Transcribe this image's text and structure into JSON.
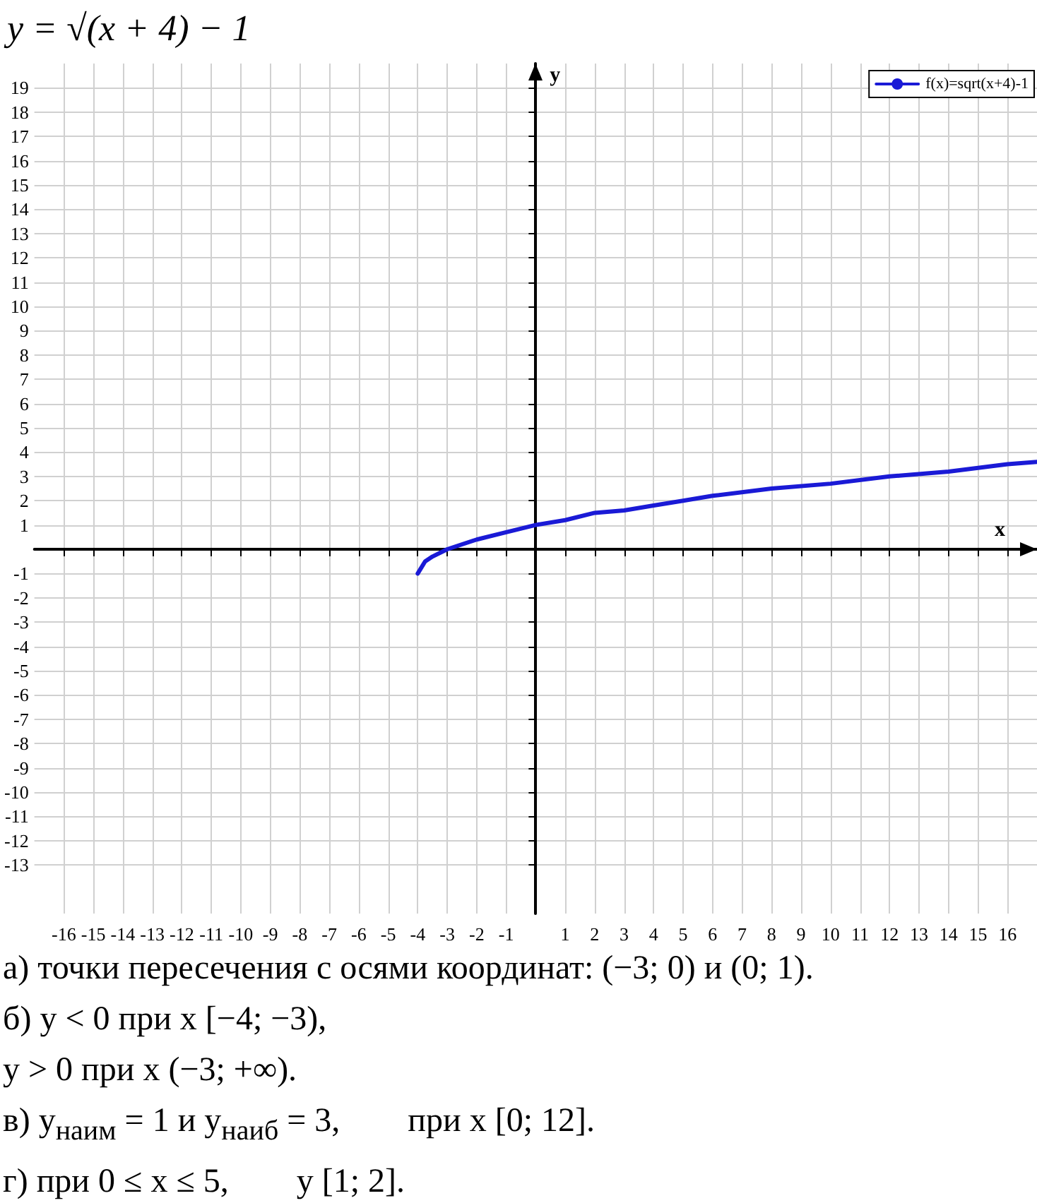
{
  "chart_data": {
    "type": "line",
    "title": "y = √(x + 4) − 1",
    "xlabel": "x",
    "ylabel": "y",
    "x": [
      -4,
      -3.75,
      -3.5,
      -3,
      -2,
      -1,
      0,
      1,
      2,
      3,
      4,
      5,
      6,
      8,
      10,
      12,
      14,
      16,
      17
    ],
    "series": [
      {
        "name": "f(x)=sqrt(x+4)-1",
        "color": "#1a1ad6",
        "values": [
          -1,
          -0.5,
          -0.3,
          0,
          0.4,
          0.7,
          1,
          1.2,
          1.5,
          1.6,
          1.8,
          2,
          2.2,
          2.5,
          2.7,
          3,
          3.2,
          3.5,
          3.6
        ]
      }
    ],
    "xlim": [
      -17,
      17
    ],
    "ylim": [
      -15,
      20
    ],
    "xticks": [
      -16,
      -15,
      -14,
      -13,
      -12,
      -11,
      -10,
      -9,
      -8,
      -7,
      -6,
      -5,
      -4,
      -3,
      -2,
      -1,
      1,
      2,
      3,
      4,
      5,
      6,
      7,
      8,
      9,
      10,
      11,
      12,
      13,
      14,
      15,
      16
    ],
    "yticks": [
      -13,
      -12,
      -11,
      -10,
      -9,
      -8,
      -7,
      -6,
      -5,
      -4,
      -3,
      -2,
      -1,
      1,
      2,
      3,
      4,
      5,
      6,
      7,
      8,
      9,
      10,
      11,
      12,
      13,
      14,
      15,
      16,
      17,
      18,
      19
    ],
    "grid": true,
    "legend": "top right",
    "annotations": [
      "а) точки пересечения с осями координат: (−3; 0) и (0; 1).",
      "б) y < 0 при x [−4; −3),",
      "y > 0 при x (−3; +∞).",
      "в) y$_{наим}$ = 1 и y$_{наиб}$ = 3,        при x [0; 12].",
      "г) при 0 ≤ x ≤ 5,        y [1; 2]."
    ]
  }
}
